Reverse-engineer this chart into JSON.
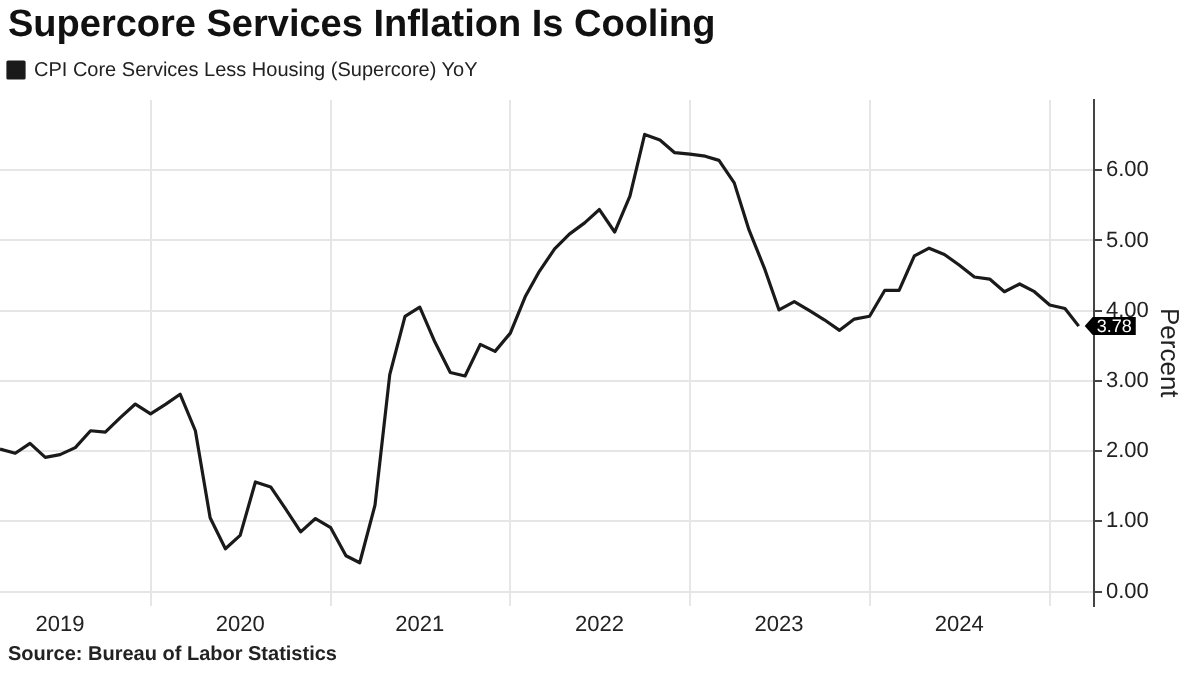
{
  "chart_data": {
    "type": "line",
    "title": "Supercore Services Inflation Is Cooling",
    "ylabel": "Percent",
    "annotations": [
      "Source: Bureau of Labor Statistics",
      {
        "text": "3.78",
        "x": "2025-03",
        "y": 3.78
      }
    ],
    "x": [
      "2019-03",
      "2019-04",
      "2019-05",
      "2019-06",
      "2019-07",
      "2019-08",
      "2019-09",
      "2019-10",
      "2019-11",
      "2019-12",
      "2020-01",
      "2020-02",
      "2020-03",
      "2020-04",
      "2020-05",
      "2020-06",
      "2020-07",
      "2020-08",
      "2020-09",
      "2020-10",
      "2020-11",
      "2020-12",
      "2021-01",
      "2021-02",
      "2021-03",
      "2021-04",
      "2021-05",
      "2021-06",
      "2021-07",
      "2021-08",
      "2021-09",
      "2021-10",
      "2021-11",
      "2021-12",
      "2022-01",
      "2022-02",
      "2022-03",
      "2022-04",
      "2022-05",
      "2022-06",
      "2022-07",
      "2022-08",
      "2022-09",
      "2022-10",
      "2022-11",
      "2022-12",
      "2023-01",
      "2023-02",
      "2023-03",
      "2023-04",
      "2023-05",
      "2023-06",
      "2023-07",
      "2023-08",
      "2023-09",
      "2023-10",
      "2023-11",
      "2023-12",
      "2024-01",
      "2024-02",
      "2024-03",
      "2024-04",
      "2024-05",
      "2024-06",
      "2024-07",
      "2024-08",
      "2024-09",
      "2024-10",
      "2024-11",
      "2024-12",
      "2025-01",
      "2025-02",
      "2025-03"
    ],
    "series": [
      {
        "name": "CPI Core Services Less Housing (Supercore) YoY",
        "color": "#1a1a1a",
        "values": [
          2.03,
          1.97,
          2.11,
          1.91,
          1.95,
          2.05,
          2.29,
          2.27,
          2.48,
          2.67,
          2.53,
          2.67,
          2.81,
          2.29,
          1.05,
          0.61,
          0.8,
          1.56,
          1.49,
          1.18,
          0.85,
          1.04,
          0.91,
          0.51,
          0.41,
          1.23,
          3.09,
          3.92,
          4.05,
          3.55,
          3.12,
          3.07,
          3.52,
          3.42,
          3.68,
          4.21,
          4.56,
          4.88,
          5.09,
          5.25,
          5.44,
          5.12,
          5.63,
          6.51,
          6.43,
          6.25,
          6.23,
          6.2,
          6.14,
          5.82,
          5.15,
          4.61,
          4.01,
          4.13,
          4.0,
          3.87,
          3.72,
          3.88,
          3.92,
          4.29,
          4.29,
          4.78,
          4.89,
          4.8,
          4.65,
          4.48,
          4.45,
          4.27,
          4.38,
          4.27,
          4.08,
          4.03,
          3.78
        ]
      }
    ],
    "xlim": [
      "2019-03",
      "2025-04"
    ],
    "xticks": [
      {
        "value": "2019-07",
        "label": "2019"
      },
      {
        "value": "2020-01",
        "label": null
      },
      {
        "value": "2020-07",
        "label": "2020"
      },
      {
        "value": "2021-01",
        "label": null
      },
      {
        "value": "2021-07",
        "label": "2021"
      },
      {
        "value": "2022-01",
        "label": null
      },
      {
        "value": "2022-07",
        "label": "2022"
      },
      {
        "value": "2023-01",
        "label": null
      },
      {
        "value": "2023-07",
        "label": "2023"
      },
      {
        "value": "2024-01",
        "label": null
      },
      {
        "value": "2024-07",
        "label": "2024"
      },
      {
        "value": "2025-01",
        "label": null
      }
    ],
    "ylim": [
      -0.2,
      7
    ],
    "yticks": [
      {
        "value": 0,
        "label": "0.00"
      },
      {
        "value": 1,
        "label": "1.00"
      },
      {
        "value": 2,
        "label": "2.00"
      },
      {
        "value": 3,
        "label": "3.00"
      },
      {
        "value": 4,
        "label": "4.00"
      },
      {
        "value": 5,
        "label": "5.00"
      },
      {
        "value": 6,
        "label": "6.00"
      }
    ],
    "grid": true,
    "legend": "top left",
    "marker": "none",
    "line_style": "solid"
  }
}
